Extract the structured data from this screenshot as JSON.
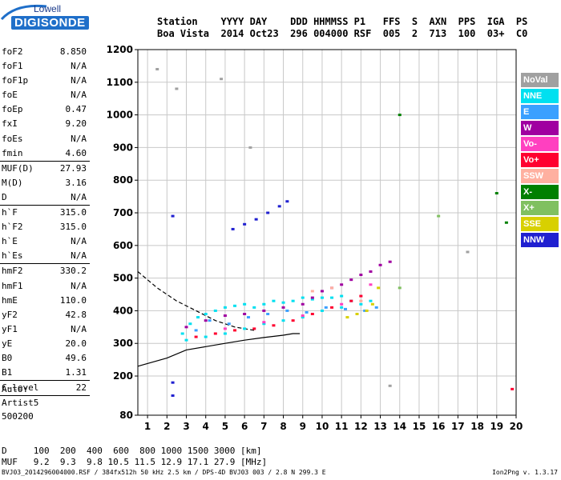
{
  "logo": {
    "brand": "Lowell",
    "product": "DIGISONDE"
  },
  "header": {
    "line1": "Station    YYYY DAY    DDD HHMMSS P1   FFS  S  AXN  PPS  IGA  PS",
    "line2": "Boa Vista  2014 Oct23  296 004000 RSF  005  2  713  100  03+  C0"
  },
  "params": [
    {
      "label": "foF2",
      "value": "8.850"
    },
    {
      "label": "foF1",
      "value": "N/A"
    },
    {
      "label": "foF1p",
      "value": "N/A"
    },
    {
      "label": "foE",
      "value": "N/A"
    },
    {
      "label": "foEp",
      "value": "0.47"
    },
    {
      "label": "fxI",
      "value": "9.20"
    },
    {
      "label": "foEs",
      "value": "N/A"
    },
    {
      "label": "fmin",
      "value": "4.60"
    },
    {
      "label": "MUF(D)",
      "value": "27.93"
    },
    {
      "label": "M(D)",
      "value": "3.16"
    },
    {
      "label": "D",
      "value": "N/A"
    },
    {
      "label": "h`F",
      "value": "315.0"
    },
    {
      "label": "h`F2",
      "value": "315.0"
    },
    {
      "label": "h`E",
      "value": "N/A"
    },
    {
      "label": "h`Es",
      "value": "N/A"
    },
    {
      "label": "hmF2",
      "value": "330.2"
    },
    {
      "label": "hmF1",
      "value": "N/A"
    },
    {
      "label": "hmE",
      "value": "110.0"
    },
    {
      "label": "yF2",
      "value": "42.8"
    },
    {
      "label": "yF1",
      "value": "N/A"
    },
    {
      "label": "yE",
      "value": "20.0"
    },
    {
      "label": "B0",
      "value": "49.6"
    },
    {
      "label": "B1",
      "value": "1.31"
    },
    {
      "label": "C-level",
      "value": "22"
    }
  ],
  "auto": [
    "Auto:",
    "Artist5",
    "500200"
  ],
  "footer": {
    "line1": "D     100  200  400  600  800 1000 1500 3000 [km]",
    "line2": "MUF   9.2  9.3  9.8 10.5 11.5 12.9 17.1 27.9 [MHz]"
  },
  "fileinfo": "BVJ03_2014296004000.RSF / 384fx512h 50 kHz 2.5 km / DPS-4D BVJ03 003 / 2.8 N 299.3 E",
  "version": "Ion2Png v. 1.3.17",
  "legend": [
    {
      "label": "NoVal",
      "color": "#a0a0a0"
    },
    {
      "label": "NNE",
      "color": "#00e0f0"
    },
    {
      "label": "E",
      "color": "#3aa0ff"
    },
    {
      "label": "W",
      "color": "#a000a0"
    },
    {
      "label": "Vo-",
      "color": "#ff40c0"
    },
    {
      "label": "Vo+",
      "color": "#ff0030"
    },
    {
      "label": "SSW",
      "color": "#ffb0a0"
    },
    {
      "label": "X-",
      "color": "#008000"
    },
    {
      "label": "X+",
      "color": "#80c060"
    },
    {
      "label": "SSE",
      "color": "#d8d000"
    },
    {
      "label": "NNW",
      "color": "#2020d0"
    }
  ],
  "chart_data": {
    "type": "scatter",
    "xlim": [
      0.5,
      20
    ],
    "ylim": [
      80,
      1200
    ],
    "x_ticks": [
      1,
      2,
      3,
      4,
      5,
      6,
      7,
      8,
      9,
      10,
      11,
      12,
      13,
      14,
      15,
      16,
      17,
      18,
      19,
      20
    ],
    "y_ticks": [
      80,
      200,
      300,
      400,
      500,
      600,
      700,
      800,
      900,
      1000,
      1100,
      1200
    ],
    "grid": true,
    "traces": [
      {
        "name": "NNE",
        "points": [
          [
            2.8,
            330
          ],
          [
            3.2,
            360
          ],
          [
            3.6,
            380
          ],
          [
            4.0,
            390
          ],
          [
            4.5,
            400
          ],
          [
            5.0,
            410
          ],
          [
            5.5,
            415
          ],
          [
            6.0,
            420
          ],
          [
            6.5,
            410
          ],
          [
            7.0,
            420
          ],
          [
            7.5,
            430
          ],
          [
            8.0,
            425
          ],
          [
            8.5,
            430
          ],
          [
            9.0,
            440
          ],
          [
            9.5,
            435
          ],
          [
            10.0,
            440
          ],
          [
            10.5,
            440
          ],
          [
            11.0,
            445
          ],
          [
            11.5,
            430
          ],
          [
            12.0,
            420
          ],
          [
            12.5,
            430
          ],
          [
            3.0,
            310
          ],
          [
            4.0,
            320
          ],
          [
            5.0,
            330
          ],
          [
            6.0,
            345
          ],
          [
            7.0,
            360
          ],
          [
            8.0,
            370
          ],
          [
            9.0,
            380
          ],
          [
            10.0,
            400
          ],
          [
            11.0,
            410
          ]
        ]
      },
      {
        "name": "E",
        "points": [
          [
            3.5,
            340
          ],
          [
            4.2,
            370
          ],
          [
            5.2,
            360
          ],
          [
            6.2,
            380
          ],
          [
            7.2,
            390
          ],
          [
            8.2,
            400
          ],
          [
            9.2,
            395
          ],
          [
            10.2,
            410
          ],
          [
            11.2,
            405
          ],
          [
            12.2,
            400
          ],
          [
            12.8,
            410
          ]
        ]
      },
      {
        "name": "W",
        "points": [
          [
            3.0,
            350
          ],
          [
            4.0,
            370
          ],
          [
            5.0,
            385
          ],
          [
            6.0,
            390
          ],
          [
            7.0,
            400
          ],
          [
            8.0,
            410
          ],
          [
            9.0,
            420
          ],
          [
            9.5,
            440
          ],
          [
            10.0,
            460
          ],
          [
            10.5,
            470
          ],
          [
            11.0,
            480
          ],
          [
            11.5,
            495
          ],
          [
            12.0,
            510
          ],
          [
            12.5,
            520
          ],
          [
            13.0,
            540
          ],
          [
            13.5,
            550
          ]
        ]
      },
      {
        "name": "Vo+",
        "points": [
          [
            3.5,
            320
          ],
          [
            4.5,
            330
          ],
          [
            5.5,
            340
          ],
          [
            6.5,
            345
          ],
          [
            7.5,
            355
          ],
          [
            8.5,
            370
          ],
          [
            9.5,
            390
          ],
          [
            10.5,
            410
          ],
          [
            11.5,
            430
          ],
          [
            12.0,
            445
          ],
          [
            19.8,
            160
          ]
        ]
      },
      {
        "name": "Vo-",
        "points": [
          [
            5.0,
            345
          ],
          [
            7.0,
            365
          ],
          [
            9.0,
            385
          ],
          [
            11.0,
            420
          ],
          [
            12.5,
            480
          ]
        ]
      },
      {
        "name": "SSE",
        "points": [
          [
            11.3,
            380
          ],
          [
            11.8,
            390
          ],
          [
            12.3,
            400
          ],
          [
            12.6,
            420
          ],
          [
            12.9,
            470
          ]
        ]
      },
      {
        "name": "SSW",
        "points": [
          [
            9.5,
            460
          ],
          [
            10.5,
            470
          ],
          [
            12.0,
            430
          ]
        ]
      },
      {
        "name": "NNW",
        "points": [
          [
            5.4,
            650
          ],
          [
            6.0,
            665
          ],
          [
            6.6,
            680
          ],
          [
            7.2,
            700
          ],
          [
            7.8,
            720
          ],
          [
            8.2,
            735
          ],
          [
            2.3,
            690
          ],
          [
            2.3,
            180
          ],
          [
            2.3,
            140
          ]
        ]
      },
      {
        "name": "X-",
        "points": [
          [
            14.0,
            1000
          ],
          [
            19.0,
            760
          ],
          [
            19.5,
            670
          ]
        ]
      },
      {
        "name": "X+",
        "points": [
          [
            14.0,
            470
          ],
          [
            16.0,
            690
          ]
        ]
      },
      {
        "name": "NoVal",
        "points": [
          [
            1.5,
            1140
          ],
          [
            2.5,
            1080
          ],
          [
            4.8,
            1110
          ],
          [
            6.3,
            900
          ],
          [
            13.5,
            170
          ],
          [
            17.5,
            580
          ]
        ]
      }
    ],
    "profile_curve": [
      [
        0.5,
        230
      ],
      [
        2.0,
        255
      ],
      [
        3.0,
        280
      ],
      [
        4.0,
        290
      ],
      [
        5.0,
        300
      ],
      [
        6.0,
        310
      ],
      [
        7.0,
        318
      ],
      [
        8.0,
        325
      ],
      [
        8.5,
        330
      ],
      [
        8.85,
        330
      ]
    ],
    "dashed_curve": [
      [
        0.5,
        520
      ],
      [
        1.5,
        470
      ],
      [
        2.5,
        430
      ],
      [
        3.5,
        400
      ],
      [
        4.5,
        370
      ],
      [
        5.5,
        350
      ],
      [
        6.5,
        340
      ]
    ]
  }
}
